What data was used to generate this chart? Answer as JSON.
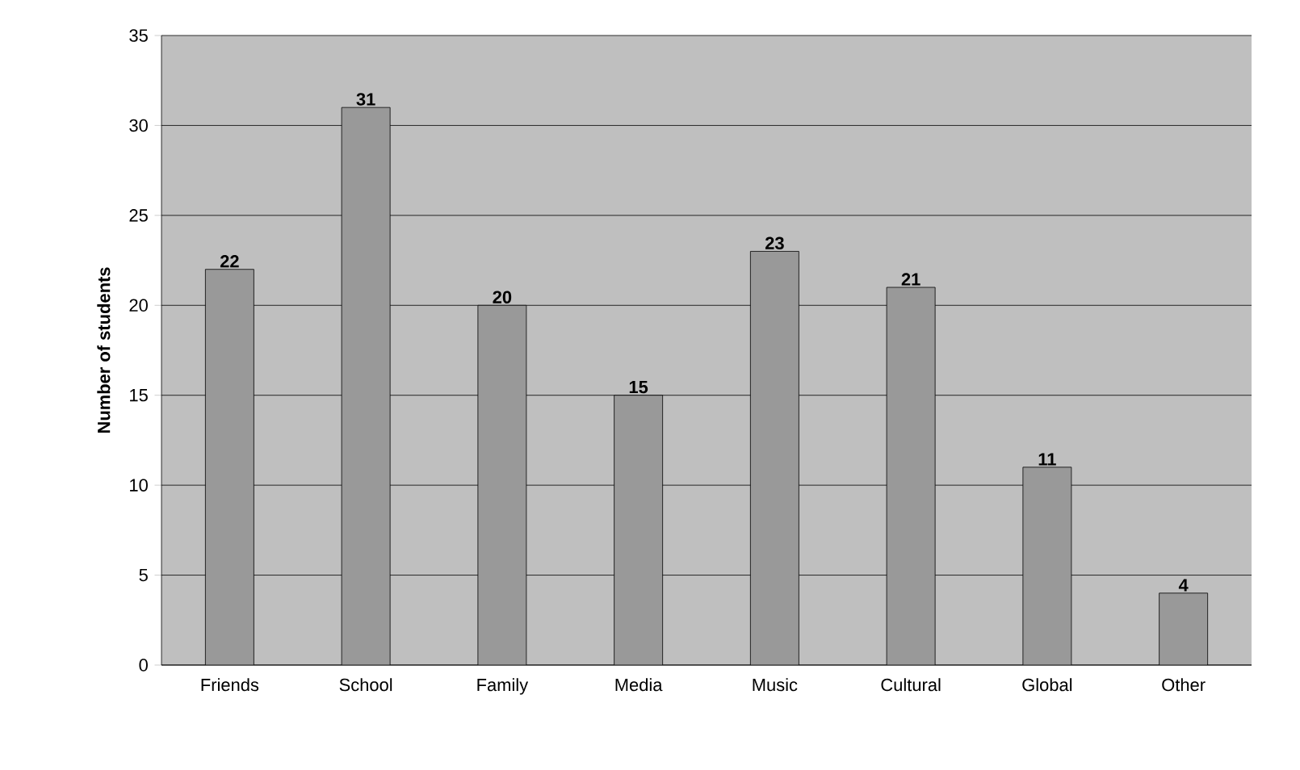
{
  "chart_data": {
    "type": "bar",
    "ylabel": "Number of students",
    "categories": [
      "Friends",
      "School",
      "Family",
      "Media",
      "Music",
      "Cultural",
      "Global",
      "Other"
    ],
    "values": [
      22,
      31,
      20,
      15,
      23,
      21,
      11,
      4
    ],
    "color": "#999999",
    "ylim": [
      0,
      35
    ],
    "yticks": [
      0,
      5,
      10,
      15,
      20,
      25,
      30,
      35
    ],
    "grid": "y",
    "data_labels": true
  }
}
